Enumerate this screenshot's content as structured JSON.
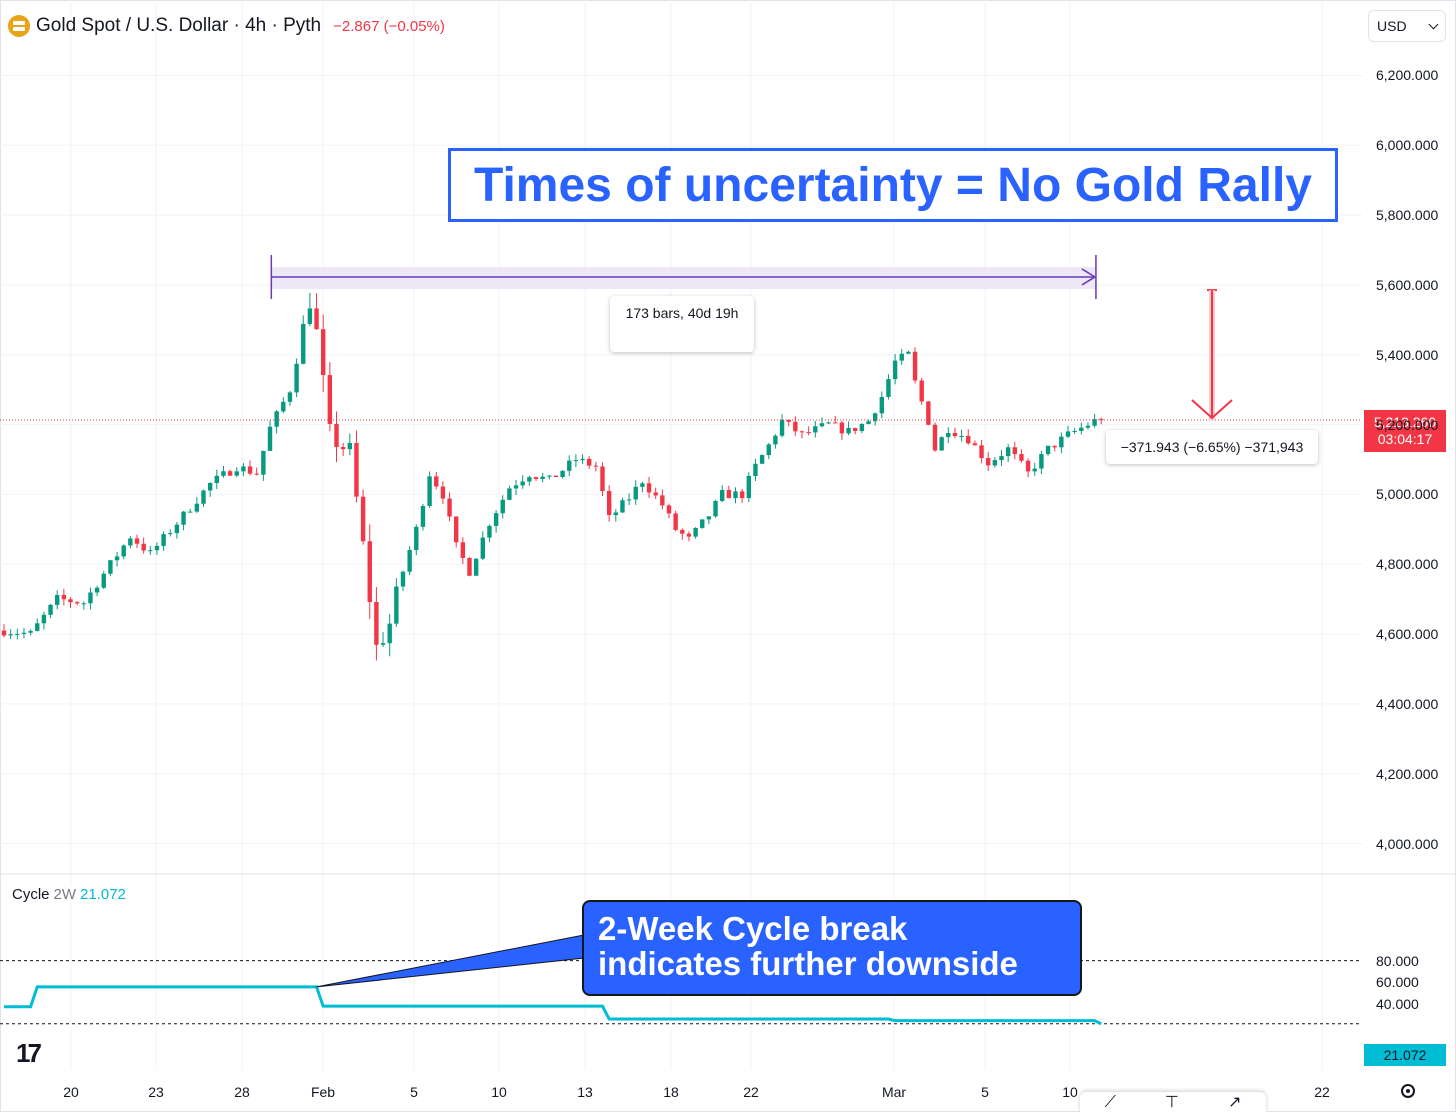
{
  "header": {
    "symbol_title": "Gold Spot / U.S. Dollar · 4h · Pyth",
    "change": "−2.867 (−0.05%)",
    "icon": "gold-bars-icon"
  },
  "currency_selector": {
    "value": "USD"
  },
  "annotations": {
    "headline": "Times of uncertainty = No Gold Rally",
    "bars_range": "173 bars, 40d 19h",
    "price_drop": "−371.943 (−6.65%) −371,943",
    "callout_line1": "2-Week Cycle break",
    "callout_line2": "indicates further downside"
  },
  "price_badge": {
    "price": "5,213.260",
    "countdown": "03:04:17"
  },
  "indicator": {
    "name": "Cycle",
    "timeframe": "2W",
    "value": "21.072",
    "badge": "21.072"
  },
  "colors": {
    "up": "#089981",
    "down": "#f23645",
    "cycle": "#00bcd4",
    "accent": "#2962ff",
    "date_range": "#673ab7",
    "date_range_fill": "#ede7f6",
    "grid": "#f0f3fa",
    "text": "#131722"
  },
  "chart_data": [
    {
      "type": "candlestick",
      "title": "Gold Spot / U.S. Dollar · 4h · Pyth",
      "last_price": 5213.26,
      "ylim": [
        3900,
        6300
      ],
      "y_ticks": [
        4000,
        4200,
        4400,
        4600,
        4800,
        5000,
        5200,
        5400,
        5600,
        5800,
        6000,
        6200
      ],
      "y_tick_labels": [
        "4,000.000",
        "4,200.000",
        "4,400.000",
        "4,600.000",
        "4,800.000",
        "5,000.000",
        "5,200.000",
        "5,400.000",
        "5,600.000",
        "5,800.000",
        "6,000.000",
        "6,200.000"
      ],
      "x_ticks": [
        "20",
        "23",
        "28",
        "Feb",
        "5",
        "10",
        "13",
        "18",
        "22",
        "Mar",
        "5",
        "10",
        "22"
      ],
      "grid": true,
      "legend": "none",
      "path": [
        [
          0,
          4610
        ],
        [
          4,
          4600
        ],
        [
          8,
          4700
        ],
        [
          12,
          4690
        ],
        [
          16,
          4800
        ],
        [
          19,
          4880
        ],
        [
          22,
          4830
        ],
        [
          27,
          4940
        ],
        [
          31,
          5030
        ],
        [
          35,
          5080
        ],
        [
          38,
          5060
        ],
        [
          40,
          5190
        ],
        [
          43,
          5300
        ],
        [
          46,
          5560
        ],
        [
          47,
          5460
        ],
        [
          49,
          5170
        ],
        [
          52,
          5120
        ],
        [
          54,
          4850
        ],
        [
          56,
          4560
        ],
        [
          58,
          4630
        ],
        [
          60,
          4780
        ],
        [
          62,
          4900
        ],
        [
          64,
          5060
        ],
        [
          66,
          5000
        ],
        [
          68,
          4850
        ],
        [
          70,
          4780
        ],
        [
          73,
          4920
        ],
        [
          76,
          5020
        ],
        [
          79,
          5060
        ],
        [
          82,
          5040
        ],
        [
          86,
          5100
        ],
        [
          89,
          5080
        ],
        [
          91,
          4930
        ],
        [
          94,
          4990
        ],
        [
          96,
          5040
        ],
        [
          99,
          4970
        ],
        [
          101,
          4900
        ],
        [
          103,
          4870
        ],
        [
          106,
          4940
        ],
        [
          108,
          5000
        ],
        [
          111,
          5000
        ],
        [
          113,
          5080
        ],
        [
          115,
          5140
        ],
        [
          117,
          5210
        ],
        [
          120,
          5170
        ],
        [
          124,
          5200
        ],
        [
          127,
          5180
        ],
        [
          130,
          5210
        ],
        [
          132,
          5280
        ],
        [
          134,
          5380
        ],
        [
          136,
          5400
        ],
        [
          137,
          5320
        ],
        [
          139,
          5210
        ],
        [
          140,
          5130
        ],
        [
          142,
          5190
        ],
        [
          145,
          5160
        ],
        [
          148,
          5090
        ],
        [
          151,
          5130
        ],
        [
          154,
          5060
        ],
        [
          157,
          5130
        ],
        [
          160,
          5170
        ],
        [
          163,
          5200
        ],
        [
          165,
          5220
        ]
      ],
      "date_range": {
        "bars": 173,
        "duration": "40d 19h",
        "price": 5600
      },
      "price_range": {
        "from": 5585.2,
        "to": 5213.26,
        "change": -371.943,
        "change_pct": -6.65
      }
    },
    {
      "type": "line",
      "name": "Cycle 2W",
      "ylim": [
        16,
        84
      ],
      "y_ticks": [
        40,
        60,
        80
      ],
      "y_tick_labels": [
        "40.000",
        "60.000",
        "80.000"
      ],
      "reference_lines": [
        80,
        21.072
      ],
      "points": [
        [
          0,
          37
        ],
        [
          4,
          37
        ],
        [
          5,
          55.5
        ],
        [
          47,
          55.5
        ],
        [
          48,
          37.5
        ],
        [
          90,
          37.5
        ],
        [
          91,
          25.5
        ],
        [
          133,
          25.5
        ],
        [
          134,
          24
        ],
        [
          164,
          24
        ],
        [
          165,
          21.07
        ]
      ]
    }
  ]
}
